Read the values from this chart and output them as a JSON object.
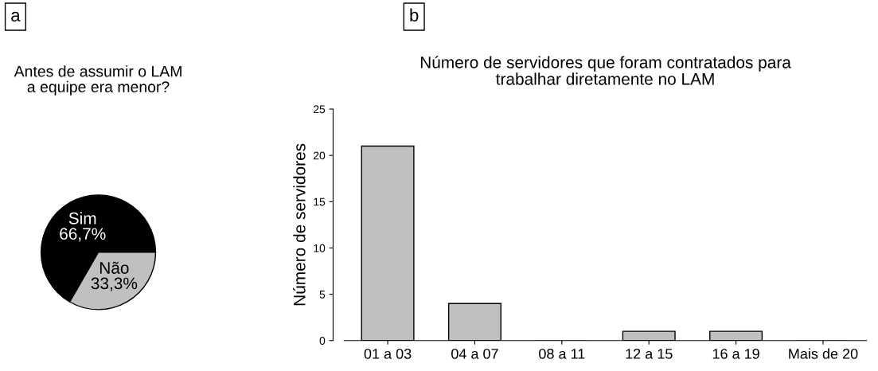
{
  "chart_data": [
    {
      "type": "pie",
      "title": "Antes de assumir o LAM\na equipe era menor?",
      "annotations": [
        "a"
      ],
      "categories": [
        "Sim",
        "Não"
      ],
      "values": [
        66.7,
        33.3
      ],
      "value_labels": [
        "66,7%",
        "33,3%"
      ],
      "colors": [
        "#000000",
        "#c0c0c0"
      ]
    },
    {
      "type": "bar",
      "title": "Número de servidores que foram contratados para\ntrabalhar diretamente no LAM",
      "annotations": [
        "b"
      ],
      "ylabel": "Número de servidores",
      "categories": [
        "01 a 03",
        "04 a 07",
        "08 a 11",
        "12 a 15",
        "16 a 19",
        "Mais de 20"
      ],
      "values": [
        21,
        4,
        0,
        1,
        1,
        0
      ],
      "color": "#c0c0c0",
      "ylim": [
        0,
        25
      ],
      "yticks": [
        0,
        5,
        10,
        15,
        20,
        25
      ],
      "grid": false
    }
  ]
}
